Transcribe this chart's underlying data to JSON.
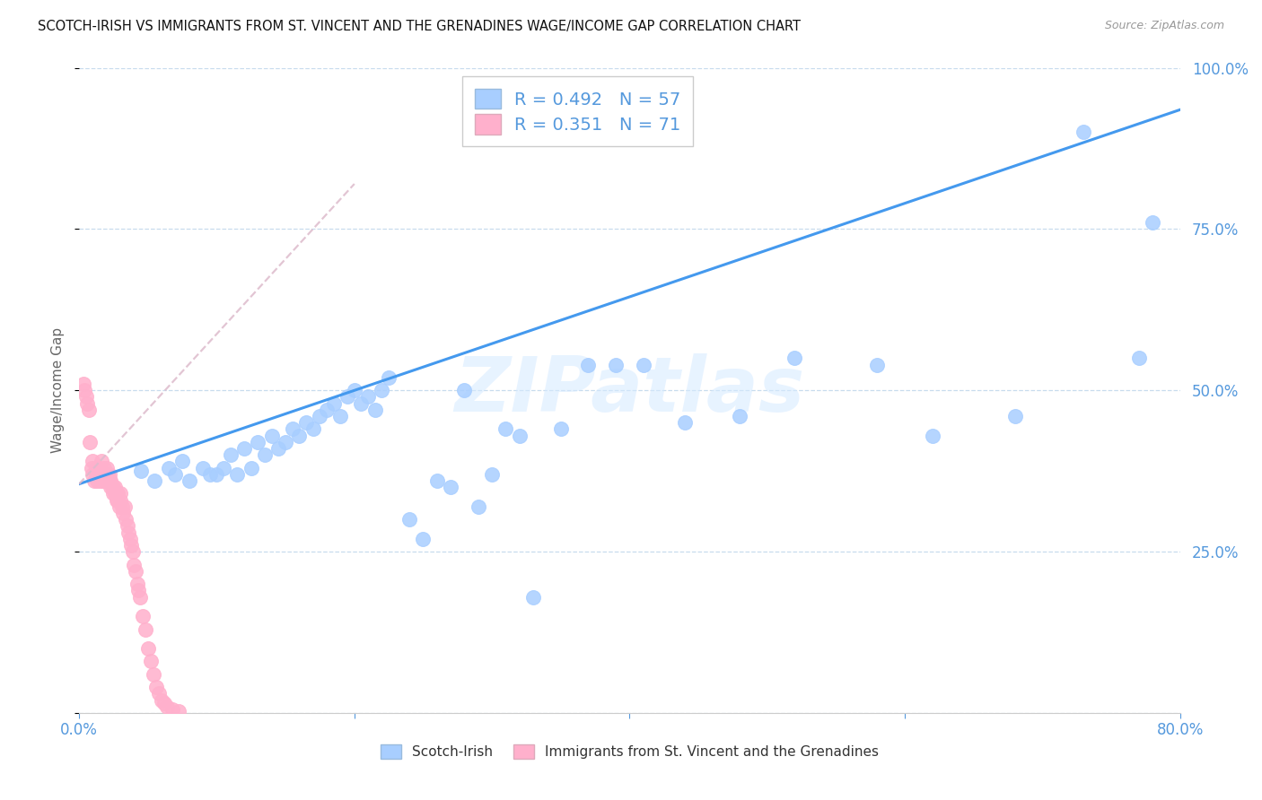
{
  "title": "SCOTCH-IRISH VS IMMIGRANTS FROM ST. VINCENT AND THE GRENADINES WAGE/INCOME GAP CORRELATION CHART",
  "source": "Source: ZipAtlas.com",
  "ylabel": "Wage/Income Gap",
  "xlim": [
    0,
    0.8
  ],
  "ylim": [
    0,
    1.0
  ],
  "blue_R": 0.492,
  "blue_N": 57,
  "pink_R": 0.351,
  "pink_N": 71,
  "blue_color": "#A8CEFF",
  "blue_edge": "#7AADEE",
  "pink_color": "#FFB0CC",
  "pink_edge": "#EE88AA",
  "blue_line_color": "#4499EE",
  "pink_line_color": "#DDBBCC",
  "axis_color": "#5599DD",
  "watermark": "ZIPatlas",
  "blue_trend": [
    0.0,
    0.355,
    0.8,
    0.935
  ],
  "pink_trend": [
    0.0,
    0.355,
    0.2,
    0.82
  ],
  "blue_x": [
    0.045,
    0.055,
    0.065,
    0.07,
    0.075,
    0.08,
    0.09,
    0.095,
    0.1,
    0.105,
    0.11,
    0.115,
    0.12,
    0.125,
    0.13,
    0.135,
    0.14,
    0.145,
    0.15,
    0.155,
    0.16,
    0.165,
    0.17,
    0.175,
    0.18,
    0.185,
    0.19,
    0.195,
    0.2,
    0.205,
    0.21,
    0.215,
    0.22,
    0.225,
    0.24,
    0.25,
    0.26,
    0.27,
    0.28,
    0.29,
    0.3,
    0.31,
    0.32,
    0.33,
    0.35,
    0.37,
    0.39,
    0.41,
    0.44,
    0.48,
    0.52,
    0.58,
    0.62,
    0.68,
    0.73,
    0.77,
    0.78
  ],
  "blue_y": [
    0.375,
    0.36,
    0.38,
    0.37,
    0.39,
    0.36,
    0.38,
    0.37,
    0.37,
    0.38,
    0.4,
    0.37,
    0.41,
    0.38,
    0.42,
    0.4,
    0.43,
    0.41,
    0.42,
    0.44,
    0.43,
    0.45,
    0.44,
    0.46,
    0.47,
    0.48,
    0.46,
    0.49,
    0.5,
    0.48,
    0.49,
    0.47,
    0.5,
    0.52,
    0.3,
    0.27,
    0.36,
    0.35,
    0.5,
    0.32,
    0.37,
    0.44,
    0.43,
    0.18,
    0.44,
    0.54,
    0.54,
    0.54,
    0.45,
    0.46,
    0.55,
    0.54,
    0.43,
    0.46,
    0.9,
    0.55,
    0.76
  ],
  "pink_x": [
    0.003,
    0.004,
    0.005,
    0.006,
    0.007,
    0.008,
    0.009,
    0.01,
    0.01,
    0.011,
    0.012,
    0.012,
    0.013,
    0.013,
    0.014,
    0.015,
    0.015,
    0.016,
    0.016,
    0.017,
    0.017,
    0.018,
    0.018,
    0.019,
    0.019,
    0.02,
    0.02,
    0.021,
    0.021,
    0.022,
    0.022,
    0.023,
    0.023,
    0.024,
    0.025,
    0.025,
    0.026,
    0.026,
    0.027,
    0.027,
    0.028,
    0.028,
    0.029,
    0.03,
    0.03,
    0.031,
    0.032,
    0.033,
    0.034,
    0.035,
    0.036,
    0.037,
    0.038,
    0.039,
    0.04,
    0.041,
    0.042,
    0.043,
    0.044,
    0.046,
    0.048,
    0.05,
    0.052,
    0.054,
    0.056,
    0.058,
    0.06,
    0.062,
    0.064,
    0.068,
    0.072
  ],
  "pink_y": [
    0.51,
    0.5,
    0.49,
    0.48,
    0.47,
    0.42,
    0.38,
    0.37,
    0.39,
    0.36,
    0.37,
    0.38,
    0.36,
    0.38,
    0.37,
    0.38,
    0.36,
    0.37,
    0.39,
    0.36,
    0.37,
    0.36,
    0.38,
    0.37,
    0.36,
    0.37,
    0.38,
    0.36,
    0.37,
    0.36,
    0.37,
    0.36,
    0.35,
    0.35,
    0.34,
    0.35,
    0.34,
    0.35,
    0.34,
    0.33,
    0.34,
    0.33,
    0.32,
    0.34,
    0.33,
    0.32,
    0.31,
    0.32,
    0.3,
    0.29,
    0.28,
    0.27,
    0.26,
    0.25,
    0.23,
    0.22,
    0.2,
    0.19,
    0.18,
    0.15,
    0.13,
    0.1,
    0.08,
    0.06,
    0.04,
    0.03,
    0.02,
    0.015,
    0.01,
    0.005,
    0.003
  ]
}
